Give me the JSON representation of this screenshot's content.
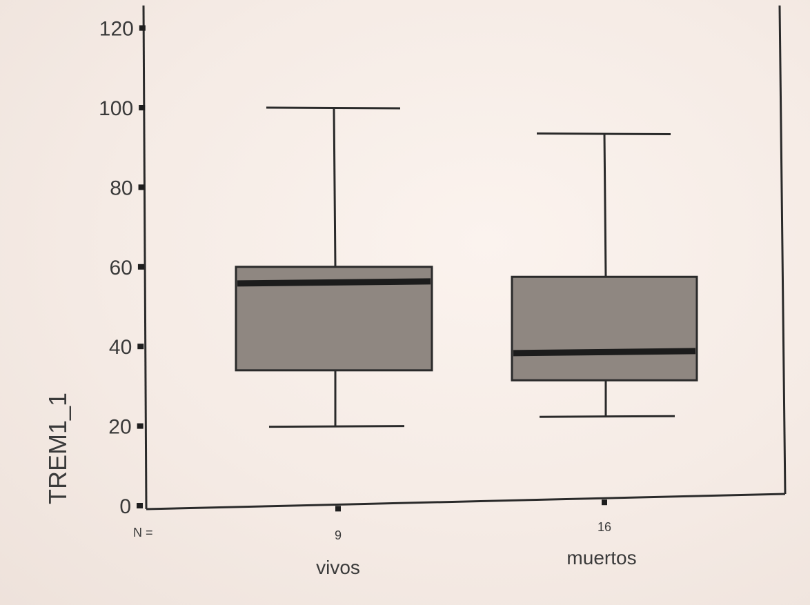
{
  "chart_data": {
    "type": "boxplot",
    "ylabel": "TREM1_1",
    "ylim": [
      0,
      120
    ],
    "yticks": [
      0,
      20,
      40,
      60,
      80,
      100,
      120
    ],
    "n_label": "N =",
    "categories": [
      "vivos",
      "muertos"
    ],
    "n": [
      "9",
      "16"
    ],
    "boxes": [
      {
        "category": "vivos",
        "n": 9,
        "min": 20,
        "q1": 34,
        "median": 56,
        "q3": 60,
        "max": 100
      },
      {
        "category": "muertos",
        "n": 16,
        "min": 21,
        "q1": 30,
        "median": 37,
        "q3": 56,
        "max": 92
      }
    ],
    "colors": {
      "box_fill": "#8f8781",
      "line": "#2a2a2a",
      "median": "#1c1c1c"
    }
  }
}
